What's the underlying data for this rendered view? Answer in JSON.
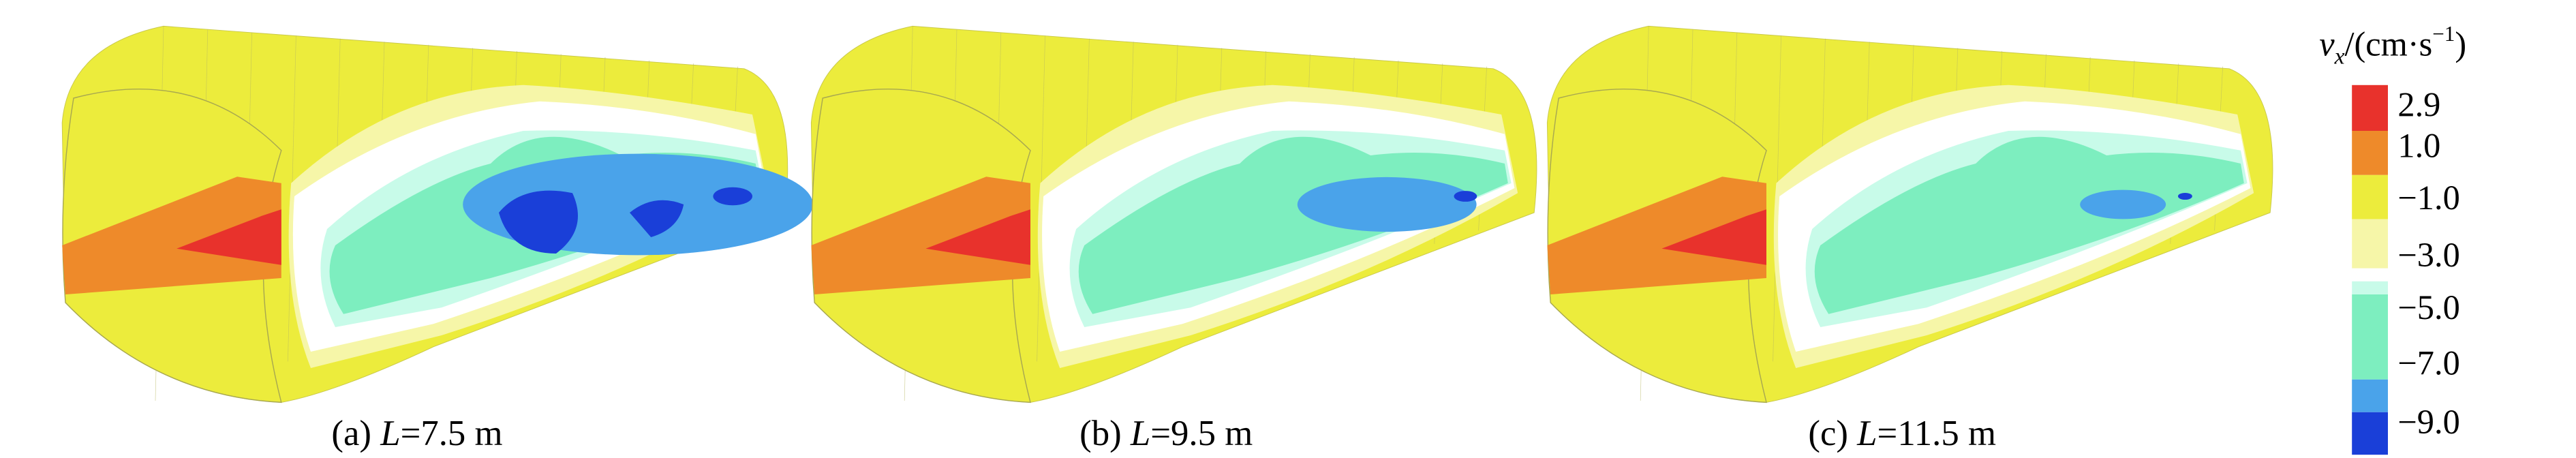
{
  "panels": [
    {
      "label": "(a) ",
      "var": "L",
      "value": "=7.5 m"
    },
    {
      "label": "(b) ",
      "var": "L",
      "value": "=9.5 m"
    },
    {
      "label": "(c) ",
      "var": "L",
      "value": "=11.5 m"
    }
  ],
  "legend": {
    "title_var": "v",
    "title_sub": "x",
    "title_unit": "/(cm·s",
    "title_sup": "−1",
    "title_close": ")",
    "colors": [
      "#e8322c",
      "#ee8a2a",
      "#ecec3c",
      "#f6f6a8",
      "#c8fbe9",
      "#7deebf",
      "#4aa3ea",
      "#1a3fd8"
    ],
    "ticks": [
      "2.9",
      "1.0",
      "−1.0",
      "−3.0",
      "−5.0",
      "−7.0",
      "−9.0"
    ]
  }
}
